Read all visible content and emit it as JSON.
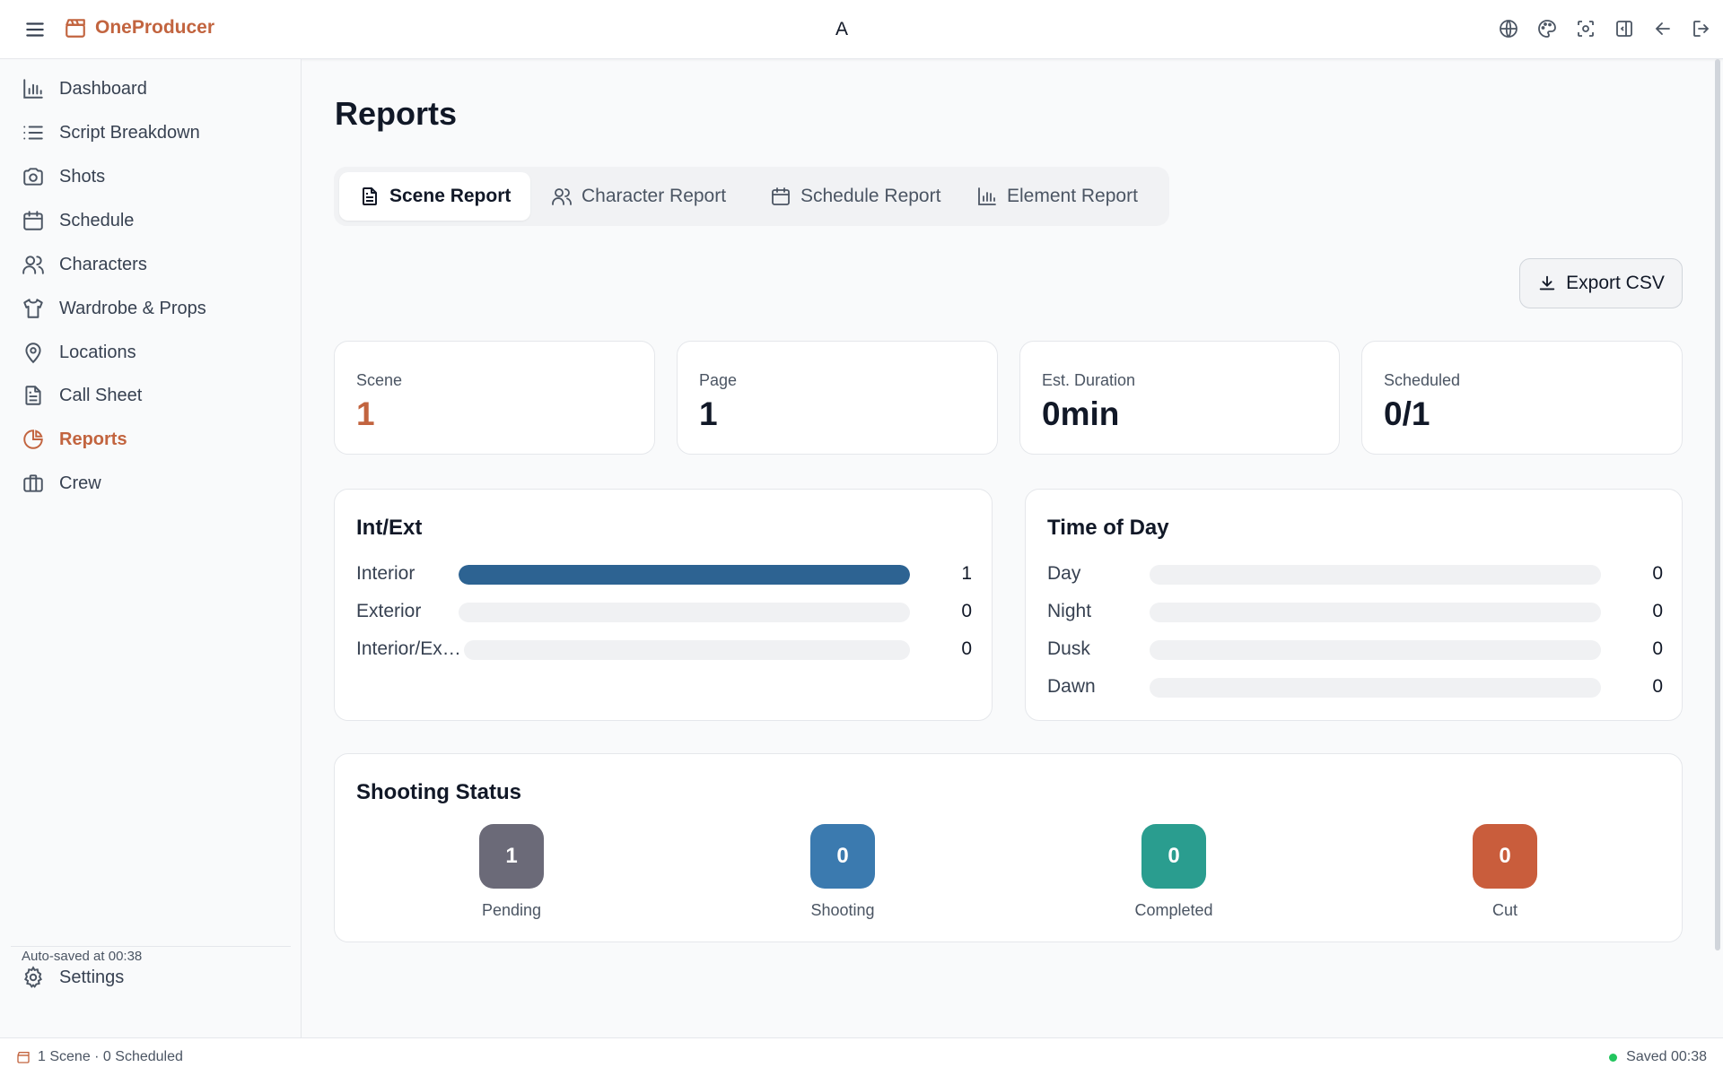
{
  "app": {
    "name": "OneProducer",
    "center_title": "A"
  },
  "header_icons": [
    "globe-icon",
    "palette-icon",
    "focus-icon",
    "panel-collapse-icon",
    "back-arrow-icon",
    "logout-icon"
  ],
  "sidebar": {
    "items": [
      {
        "label": "Dashboard",
        "icon": "bar-chart-icon",
        "active": false
      },
      {
        "label": "Script Breakdown",
        "icon": "list-icon",
        "active": false
      },
      {
        "label": "Shots",
        "icon": "camera-icon",
        "active": false
      },
      {
        "label": "Schedule",
        "icon": "calendar-icon",
        "active": false
      },
      {
        "label": "Characters",
        "icon": "users-icon",
        "active": false
      },
      {
        "label": "Wardrobe & Props",
        "icon": "shirt-icon",
        "active": false
      },
      {
        "label": "Locations",
        "icon": "map-pin-icon",
        "active": false
      },
      {
        "label": "Call Sheet",
        "icon": "document-icon",
        "active": false
      },
      {
        "label": "Reports",
        "icon": "pie-chart-icon",
        "active": true
      },
      {
        "label": "Crew",
        "icon": "briefcase-icon",
        "active": false
      }
    ],
    "settings_label": "Settings",
    "autosave_text": "Auto-saved at 00:38"
  },
  "main": {
    "title": "Reports",
    "tabs": [
      {
        "label": "Scene Report",
        "icon": "document-icon",
        "active": true
      },
      {
        "label": "Character Report",
        "icon": "users-icon",
        "active": false
      },
      {
        "label": "Schedule Report",
        "icon": "calendar-icon",
        "active": false
      },
      {
        "label": "Element Report",
        "icon": "bar-chart-icon",
        "active": false
      }
    ],
    "export_label": "Export CSV",
    "stats": [
      {
        "label": "Scene",
        "value": "1"
      },
      {
        "label": "Page",
        "value": "1"
      },
      {
        "label": "Est. Duration",
        "value": "0min"
      },
      {
        "label": "Scheduled",
        "value": "0/1"
      }
    ],
    "int_ext": {
      "title": "Int/Ext",
      "rows": [
        {
          "label": "Interior",
          "count": "1",
          "fraction": 1.0
        },
        {
          "label": "Exterior",
          "count": "0",
          "fraction": 0.0
        },
        {
          "label": "Interior/Exterior",
          "count": "0",
          "fraction": 0.0
        }
      ]
    },
    "time_of_day": {
      "title": "Time of Day",
      "rows": [
        {
          "label": "Day",
          "count": "0",
          "fraction": 0.0
        },
        {
          "label": "Night",
          "count": "0",
          "fraction": 0.0
        },
        {
          "label": "Dusk",
          "count": "0",
          "fraction": 0.0
        },
        {
          "label": "Dawn",
          "count": "0",
          "fraction": 0.0
        }
      ]
    },
    "shooting_status": {
      "title": "Shooting Status",
      "items": [
        {
          "label": "Pending",
          "count": "1",
          "color": "#6b6a78"
        },
        {
          "label": "Shooting",
          "count": "0",
          "color": "#3b7aaf"
        },
        {
          "label": "Completed",
          "count": "0",
          "color": "#2a9d8f"
        },
        {
          "label": "Cut",
          "count": "0",
          "color": "#c95d3c"
        }
      ]
    }
  },
  "footer": {
    "left_text": "1 Scene · 0 Scheduled",
    "right_text": "Saved 00:38"
  },
  "colors": {
    "accent": "#c2643f",
    "bar_fill": "#2d6392",
    "saved_dot": "#22c55e"
  }
}
